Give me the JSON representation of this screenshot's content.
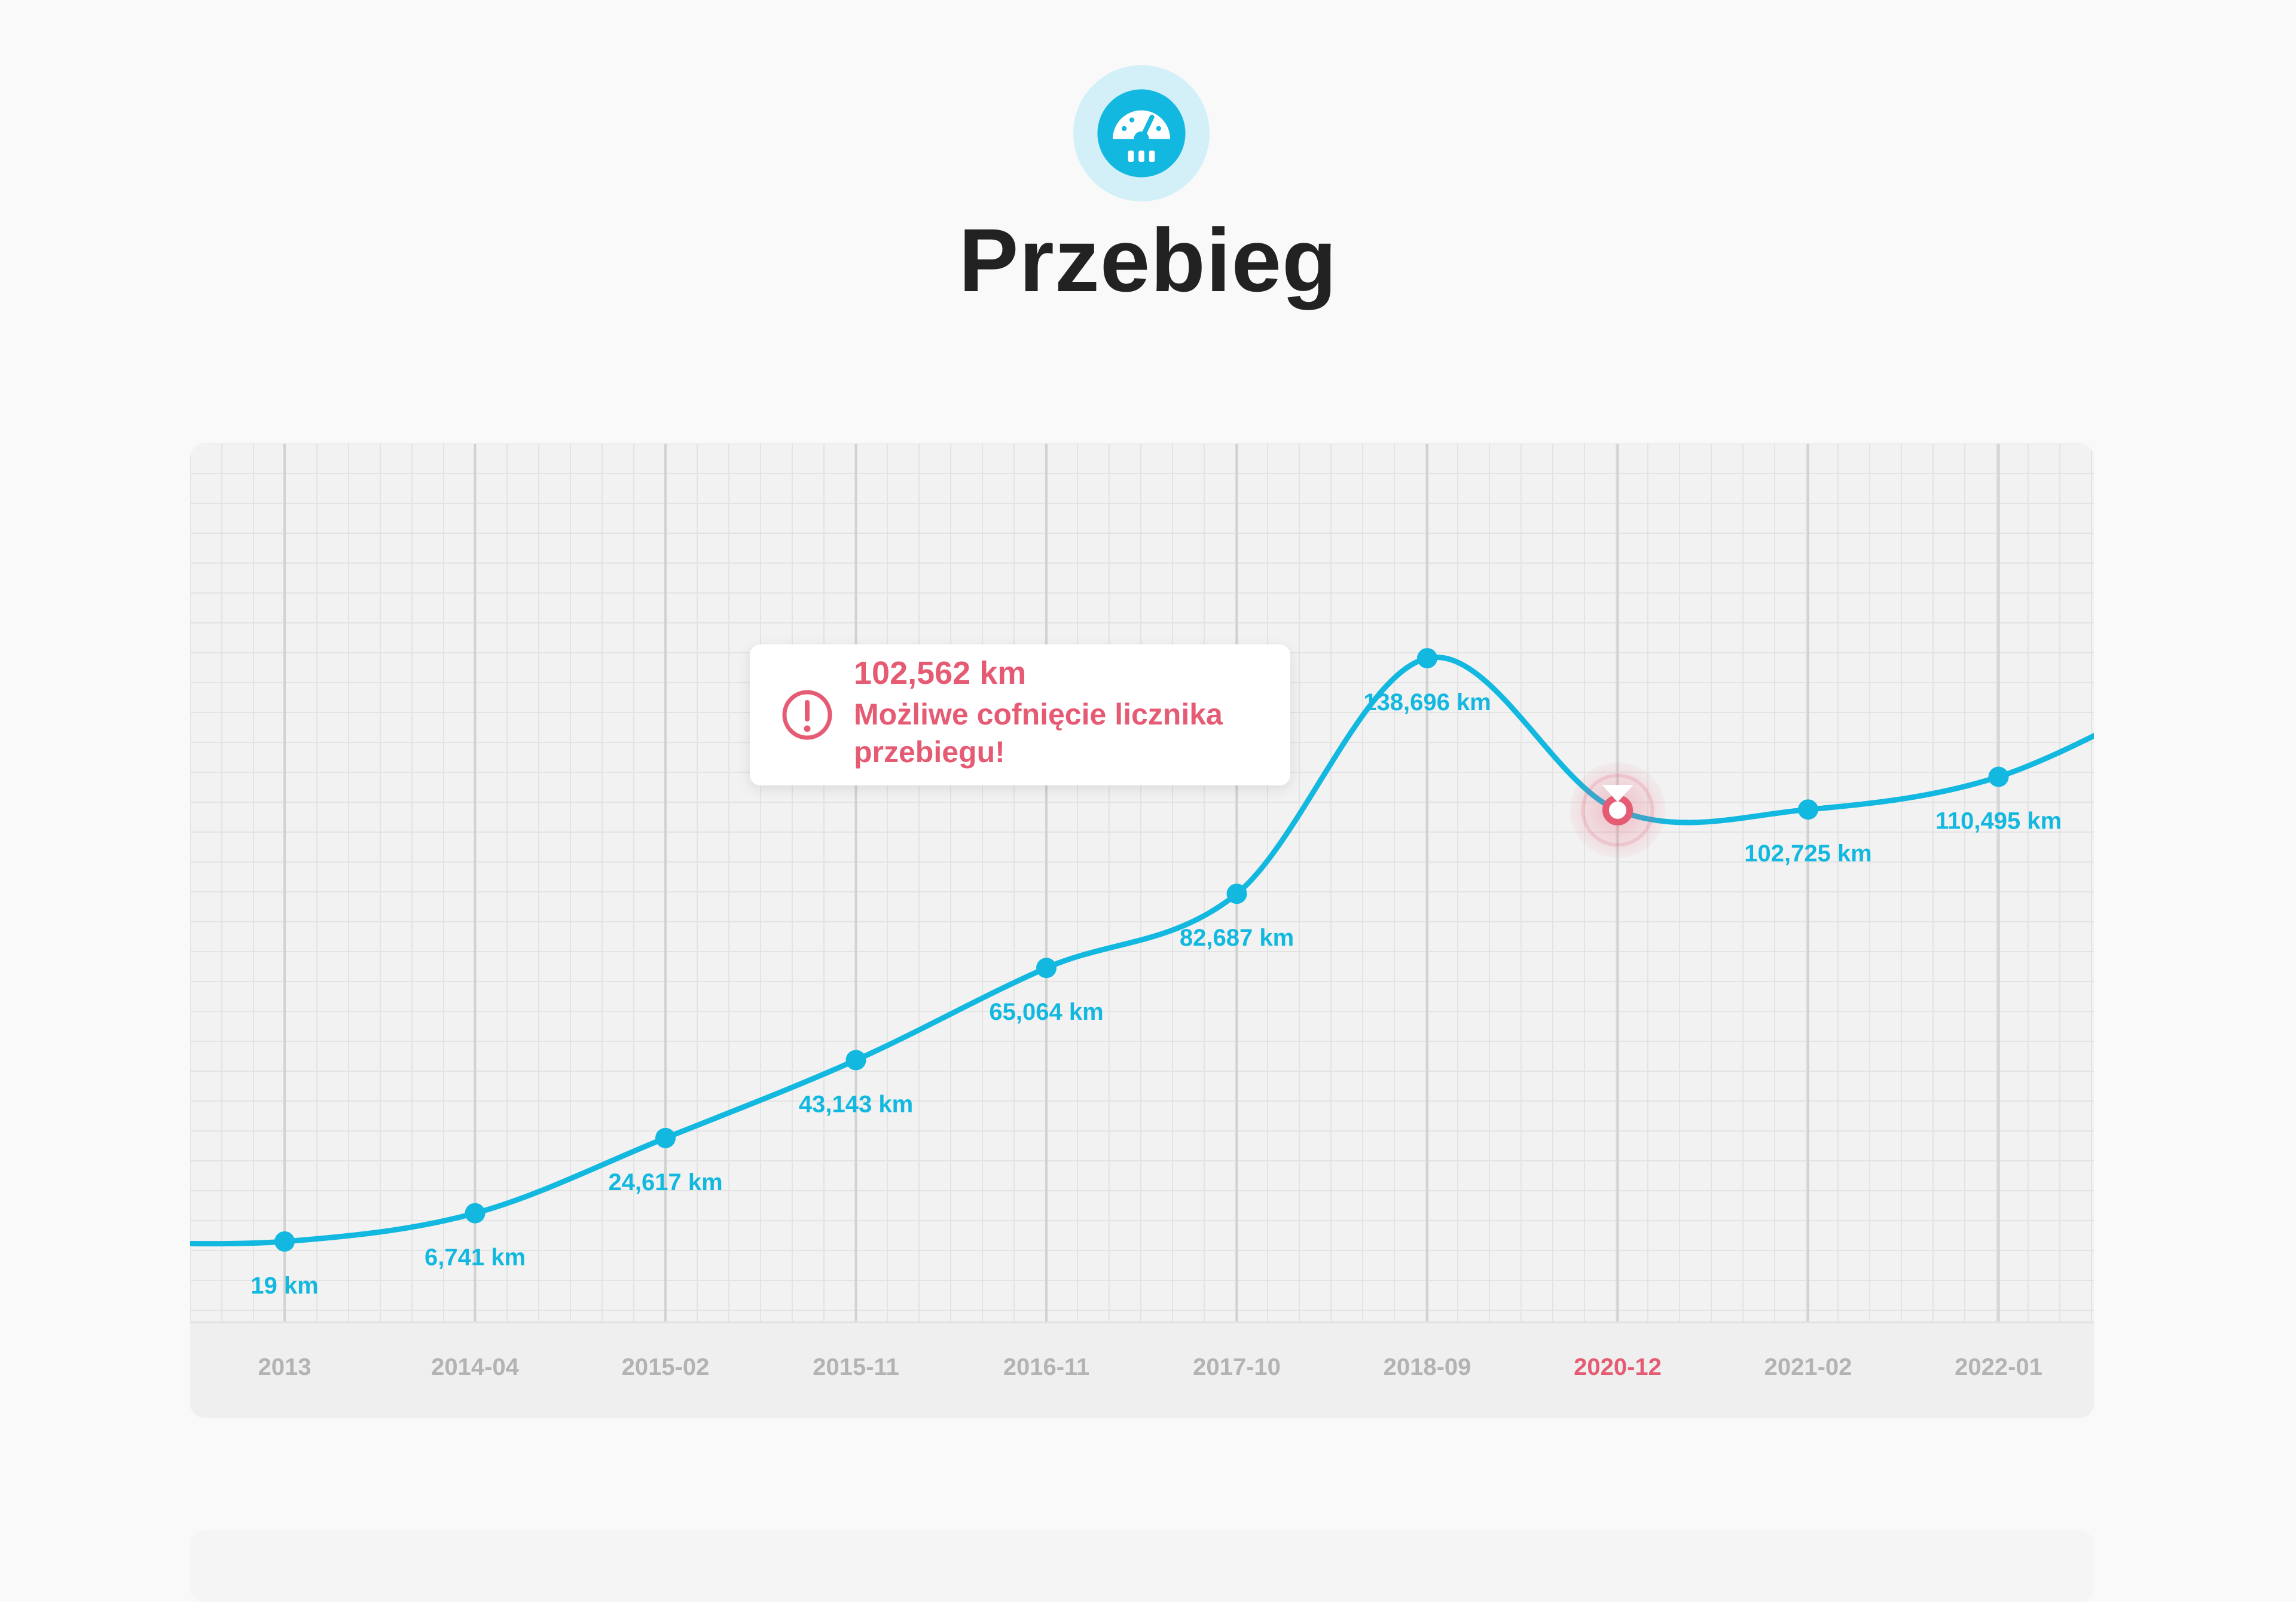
{
  "header": {
    "icon": "speedometer-icon",
    "title": "Przebieg"
  },
  "colors": {
    "accent": "#12b8df",
    "warning": "#e55b73",
    "axis_text": "#b3b3b3",
    "icon_bg": "#d3f0f8"
  },
  "chart_data": {
    "type": "line",
    "categories": [
      "2013",
      "2014-04",
      "2015-02",
      "2015-11",
      "2016-11",
      "2017-10",
      "2018-09",
      "2020-12",
      "2021-02",
      "2022-01"
    ],
    "values": [
      19,
      6741,
      24617,
      43143,
      65064,
      82687,
      138696,
      102562,
      102725,
      110495
    ],
    "point_labels": [
      "19 km",
      "6,741 km",
      "24,617 km",
      "43,143 km",
      "65,064 km",
      "82,687 km",
      "138,696 km",
      "102,562 km",
      "102,725 km",
      "110,495 km"
    ],
    "title": "",
    "xlabel": "",
    "ylabel": "",
    "grid": true,
    "highlight": {
      "category": "2020-12",
      "value_label": "102,562 km",
      "message": "Możliwe cofnięcie licznika przebiegu!",
      "message_lines": [
        "Możliwe cofnięcie licznika",
        "przebiegu!"
      ],
      "icon": "exclamation-circle-icon"
    }
  }
}
